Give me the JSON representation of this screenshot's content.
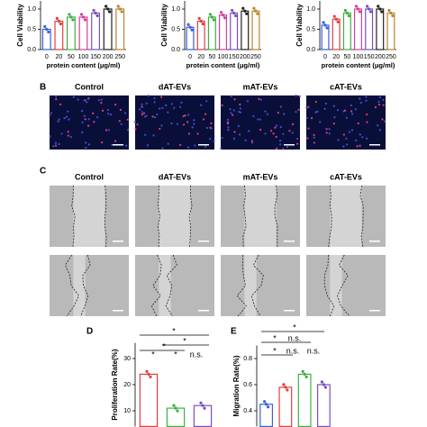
{
  "panels": {
    "b": {
      "label": "B",
      "columns": [
        "Control",
        "dAT-EVs",
        "mAT-EVs",
        "cAT-EVs"
      ]
    },
    "c": {
      "label": "C",
      "columns": [
        "Control",
        "dAT-EVs",
        "mAT-EVs",
        "cAT-EVs"
      ]
    },
    "d": {
      "label": "D"
    },
    "e": {
      "label": "E"
    }
  },
  "chart_data": [
    {
      "type": "bar",
      "y_label": "Cell Viability",
      "x_label": "protein content (μg/ml)",
      "categories": [
        "0",
        "20",
        "50",
        "100",
        "150",
        "200",
        "250"
      ],
      "values": [
        0.5,
        0.7,
        0.8,
        0.8,
        0.9,
        1.0,
        1.0
      ],
      "colors": [
        "#3b5fd9",
        "#e04040",
        "#3cb043",
        "#d0409a",
        "#7a4fc0",
        "#222222",
        "#b8862e"
      ],
      "ylim": [
        0,
        1.2
      ],
      "yticks": [
        {
          "value": 0,
          "label": "0.0"
        },
        0.5,
        {
          "value": 1,
          "label": "1.0"
        }
      ]
    },
    {
      "type": "bar",
      "y_label": "Cell Viability",
      "x_label": "protein content (μg/ml)",
      "categories": [
        "0",
        "20",
        "50",
        "100",
        "150",
        "200",
        "250"
      ],
      "values": [
        0.55,
        0.7,
        0.8,
        0.85,
        0.9,
        0.95,
        0.95
      ],
      "colors": [
        "#3b5fd9",
        "#e04040",
        "#3cb043",
        "#d0409a",
        "#7a4fc0",
        "#222222",
        "#b8862e"
      ],
      "ylim": [
        0,
        1.2
      ],
      "yticks": [
        {
          "value": 0,
          "label": "0.0"
        },
        0.5,
        {
          "value": 1,
          "label": "1.0"
        }
      ]
    },
    {
      "type": "bar",
      "y_label": "Cell Viability",
      "x_label": "protein content (μg/ml)",
      "categories": [
        "0",
        "20",
        "50",
        "100",
        "150",
        "200",
        "250"
      ],
      "values": [
        0.6,
        0.75,
        0.9,
        1.0,
        1.0,
        1.0,
        0.9
      ],
      "colors": [
        "#3b5fd9",
        "#e04040",
        "#3cb043",
        "#d0409a",
        "#7a4fc0",
        "#222222",
        "#b8862e"
      ],
      "ylim": [
        0,
        1.2
      ],
      "yticks": [
        {
          "value": 0,
          "label": "0.0"
        },
        0.5,
        {
          "value": 1,
          "label": "1.0"
        }
      ]
    },
    {
      "type": "bar",
      "y_label": "Proliferation Rate(%)",
      "values": [
        24,
        11,
        12
      ],
      "colors": [
        "#e04040",
        "#3cb043",
        "#7a4fc0"
      ],
      "ylim": [
        4,
        36
      ],
      "yticks": [
        10,
        20,
        30
      ],
      "annotations": [
        "*",
        "*",
        "*",
        "*",
        "*",
        "n.s."
      ]
    },
    {
      "type": "bar",
      "y_label": "Migration Rate(%)",
      "values": [
        0.45,
        0.58,
        0.68,
        0.6
      ],
      "colors": [
        "#3b5fd9",
        "#e04040",
        "#3cb043",
        "#7a4fc0"
      ],
      "ylim": [
        0.28,
        0.9
      ],
      "yticks": [
        0.4,
        0.6,
        0.8
      ],
      "annotations": [
        "*",
        "*",
        "n.s.",
        "*",
        "n.s.",
        "n.s."
      ]
    }
  ]
}
